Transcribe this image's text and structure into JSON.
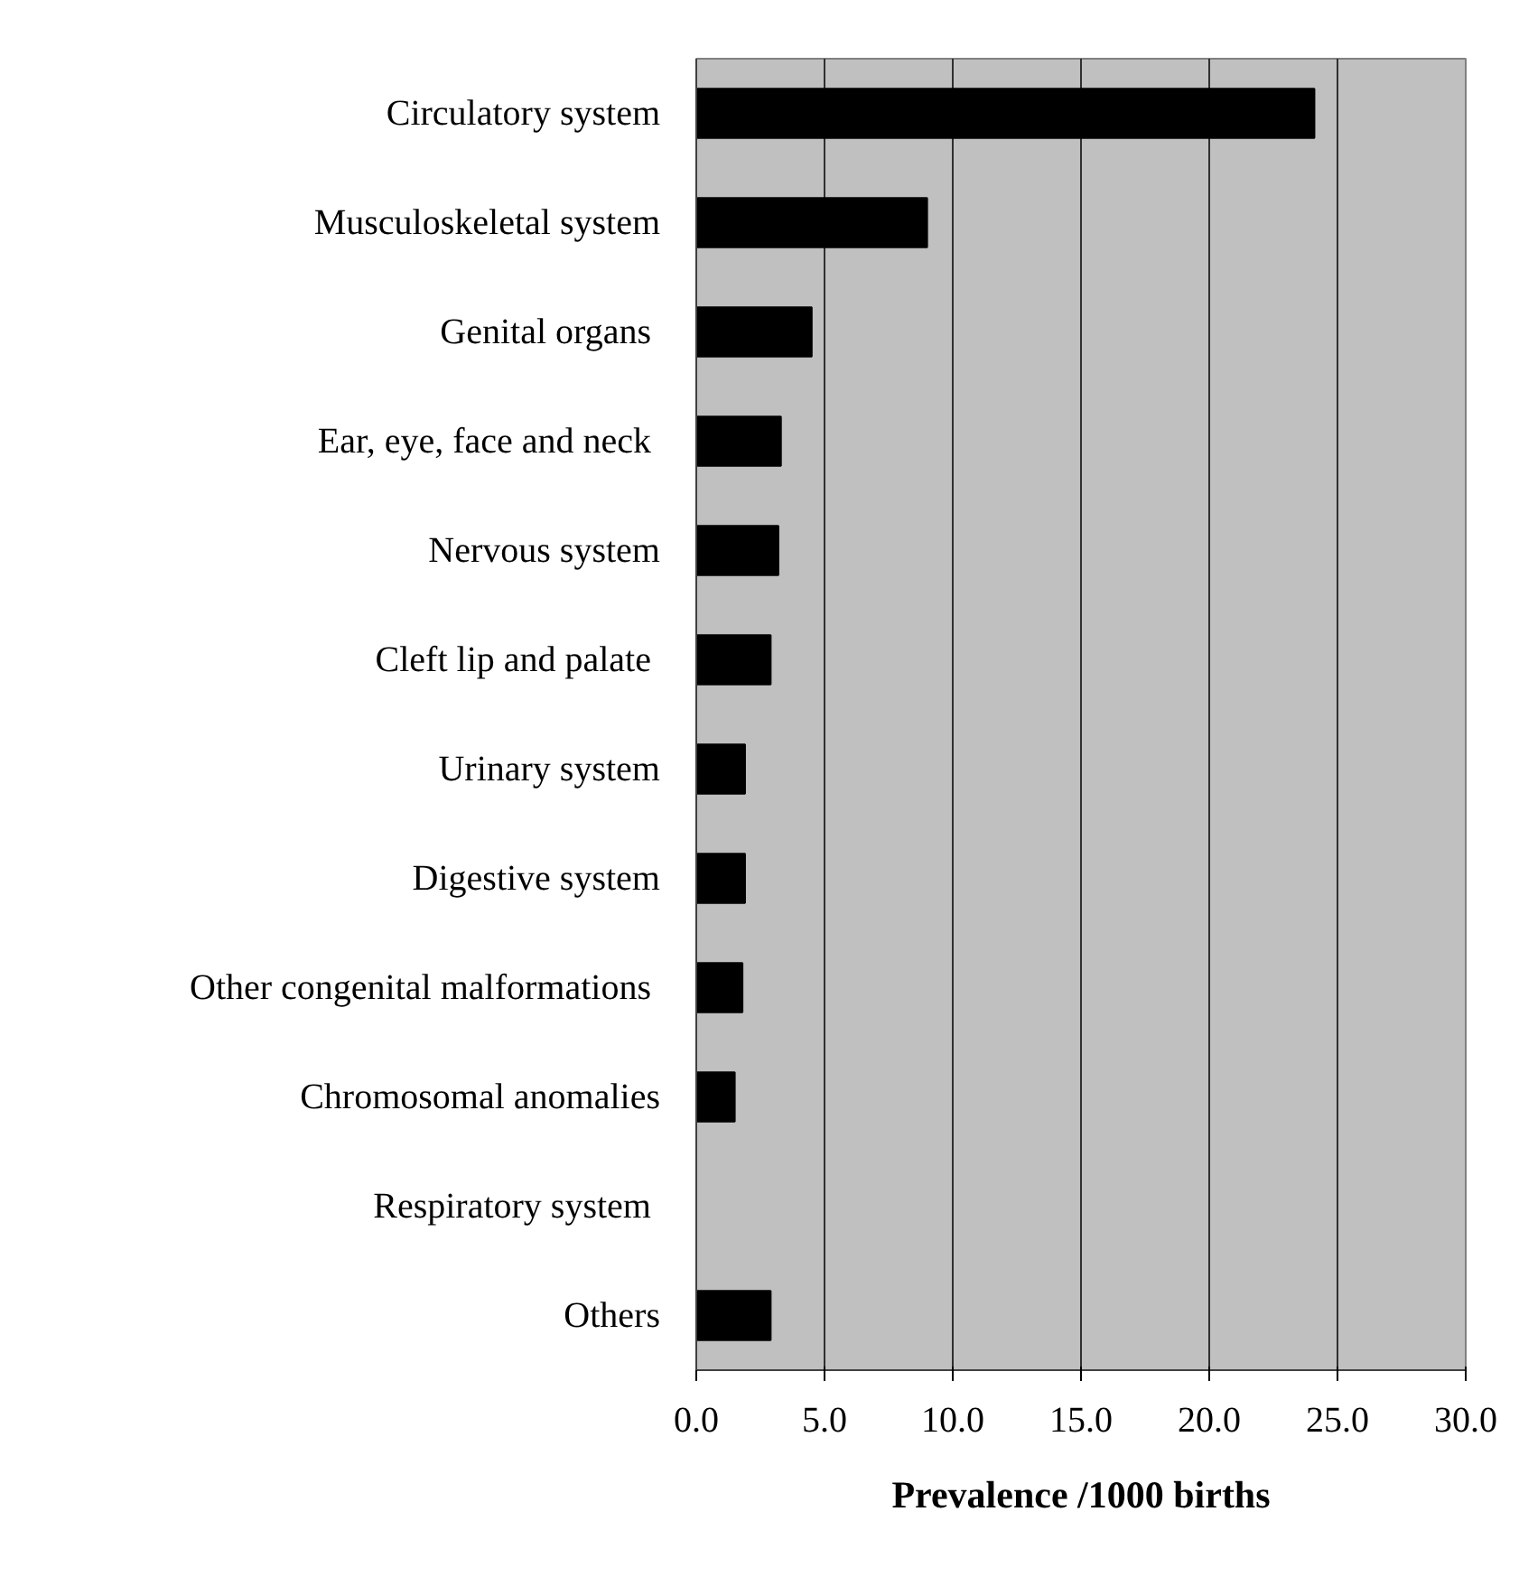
{
  "chart_data": {
    "type": "bar",
    "orientation": "horizontal",
    "xlabel": "Prevalence /1000 births",
    "categories": [
      "Circulatory system",
      "Musculoskeletal system",
      "Genital organs ",
      "Ear, eye, face and neck ",
      "Nervous system",
      "Cleft lip and palate ",
      "Urinary system",
      "Digestive system",
      "Other congenital malformations ",
      "Chromosomal anomalies",
      "Respiratory system ",
      "Others"
    ],
    "values": [
      24.1,
      9.0,
      4.5,
      3.3,
      3.2,
      2.9,
      1.9,
      1.9,
      1.8,
      1.5,
      0,
      2.9
    ],
    "color": "#000000",
    "xlim": [
      0,
      30
    ],
    "xticks": [
      {
        "value": 0,
        "label": "0.0"
      },
      {
        "value": 5,
        "label": "5.0"
      },
      {
        "value": 10,
        "label": "10.0"
      },
      {
        "value": 15,
        "label": "15.0"
      },
      {
        "value": 20,
        "label": "20.0"
      },
      {
        "value": 25,
        "label": "25.0"
      },
      {
        "value": 30,
        "label": "30.0"
      }
    ],
    "grid": "x"
  }
}
